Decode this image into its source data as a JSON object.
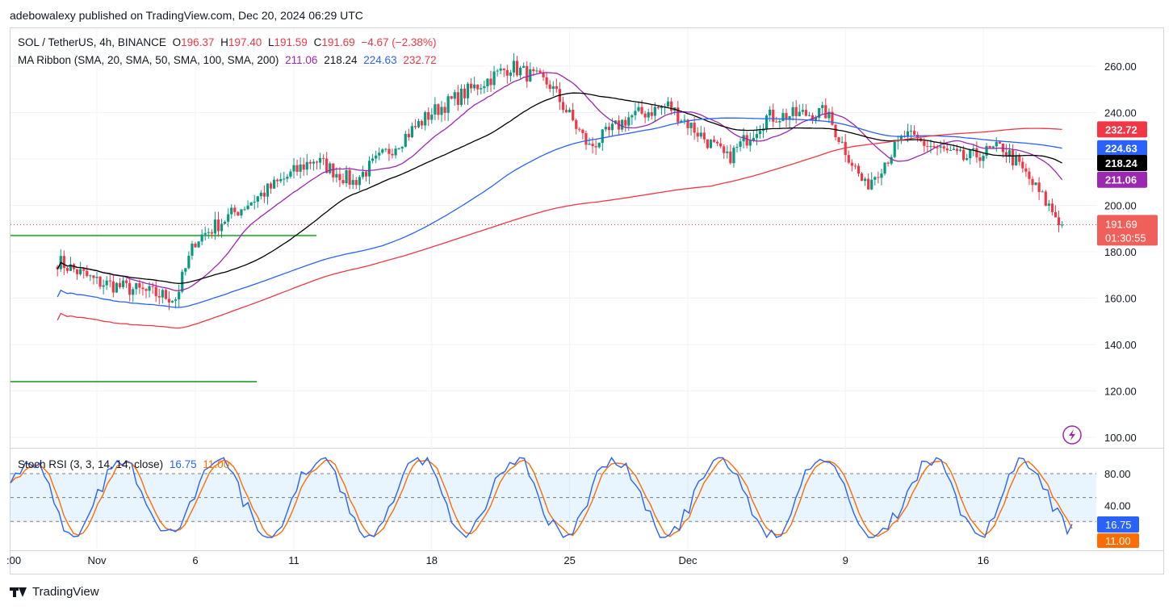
{
  "header": {
    "publisher": "adebowalexy published on TradingView.com, Dec 20, 2024 06:29 UTC"
  },
  "legend": {
    "symbol": "SOL / TetherUS, 4h, BINANCE",
    "open_label": "O",
    "open": "196.37",
    "high_label": "H",
    "high": "197.40",
    "low_label": "L",
    "low": "191.59",
    "close_label": "C",
    "close": "191.69",
    "change": "−4.67 (−2.38%)",
    "ma_label": "MA Ribbon (SMA, 20, SMA, 50, SMA, 100, SMA, 200)",
    "ma20": "211.06",
    "ma50": "218.24",
    "ma100": "224.63",
    "ma200": "232.72",
    "stoch_label": "Stoch RSI (3, 3, 14, 14, close)",
    "stoch_k": "16.75",
    "stoch_d": "11.00"
  },
  "footer": {
    "brand": "TradingView"
  },
  "colors": {
    "up": "#089981",
    "down": "#f23645",
    "ma20": "#9c27b0",
    "ma50": "#000000",
    "ma100": "#2962ff",
    "ma200": "#f23645",
    "stoch_k": "#2962ff",
    "stoch_d": "#ff6d00",
    "support": "#4caf50"
  },
  "chart_data": [
    {
      "type": "candlestick",
      "title": "SOL / TetherUS, 4h, BINANCE",
      "x_ticks": [
        ":00",
        "Nov",
        "6",
        "11",
        "18",
        "25",
        "Dec",
        "9",
        "16"
      ],
      "y_ticks": [
        "100.00",
        "120.00",
        "140.00",
        "160.00",
        "180.00",
        "200.00",
        "220.00",
        "240.00",
        "260.00"
      ],
      "ylim": [
        97,
        276
      ],
      "last_price": "191.69",
      "countdown": "01:30:55",
      "price_tags": [
        {
          "value": "232.72",
          "color": "#f23645"
        },
        {
          "value": "224.63",
          "color": "#2962ff"
        },
        {
          "value": "218.24",
          "color": "#000000"
        },
        {
          "value": "211.06",
          "color": "#9c27b0"
        }
      ],
      "support_lines": [
        187,
        124
      ],
      "key_points": [
        {
          "x": "Oct 30",
          "price": 176
        },
        {
          "x": "Nov 1",
          "price": 167
        },
        {
          "x": "Nov 5",
          "price": 160
        },
        {
          "x": "Nov 6",
          "price": 185
        },
        {
          "x": "Nov 8",
          "price": 197
        },
        {
          "x": "Nov 12",
          "price": 220
        },
        {
          "x": "Nov 14",
          "price": 210
        },
        {
          "x": "Nov 18",
          "price": 240
        },
        {
          "x": "Nov 22",
          "price": 260
        },
        {
          "x": "Nov 24",
          "price": 252
        },
        {
          "x": "Nov 26",
          "price": 225
        },
        {
          "x": "Nov 28",
          "price": 238
        },
        {
          "x": "Nov 30",
          "price": 243
        },
        {
          "x": "Dec 3",
          "price": 220
        },
        {
          "x": "Dec 5",
          "price": 238
        },
        {
          "x": "Dec 8",
          "price": 240
        },
        {
          "x": "Dec 10",
          "price": 208
        },
        {
          "x": "Dec 12",
          "price": 230
        },
        {
          "x": "Dec 15",
          "price": 220
        },
        {
          "x": "Dec 17",
          "price": 225
        },
        {
          "x": "Dec 18",
          "price": 215
        },
        {
          "x": "Dec 20",
          "price": 191.69
        }
      ],
      "series": [
        {
          "name": "SMA 20",
          "last": 211.06
        },
        {
          "name": "SMA 50",
          "last": 218.24
        },
        {
          "name": "SMA 100",
          "last": 224.63
        },
        {
          "name": "SMA 200",
          "last": 232.72
        }
      ]
    },
    {
      "type": "line",
      "title": "Stoch RSI (3, 3, 14, 14, close)",
      "y_ticks": [
        "40.00",
        "80.00"
      ],
      "ylim": [
        -2,
        101
      ],
      "band": [
        20,
        80
      ],
      "series": [
        {
          "name": "K",
          "last": 16.75
        },
        {
          "name": "D",
          "last": 11.0
        }
      ]
    }
  ]
}
